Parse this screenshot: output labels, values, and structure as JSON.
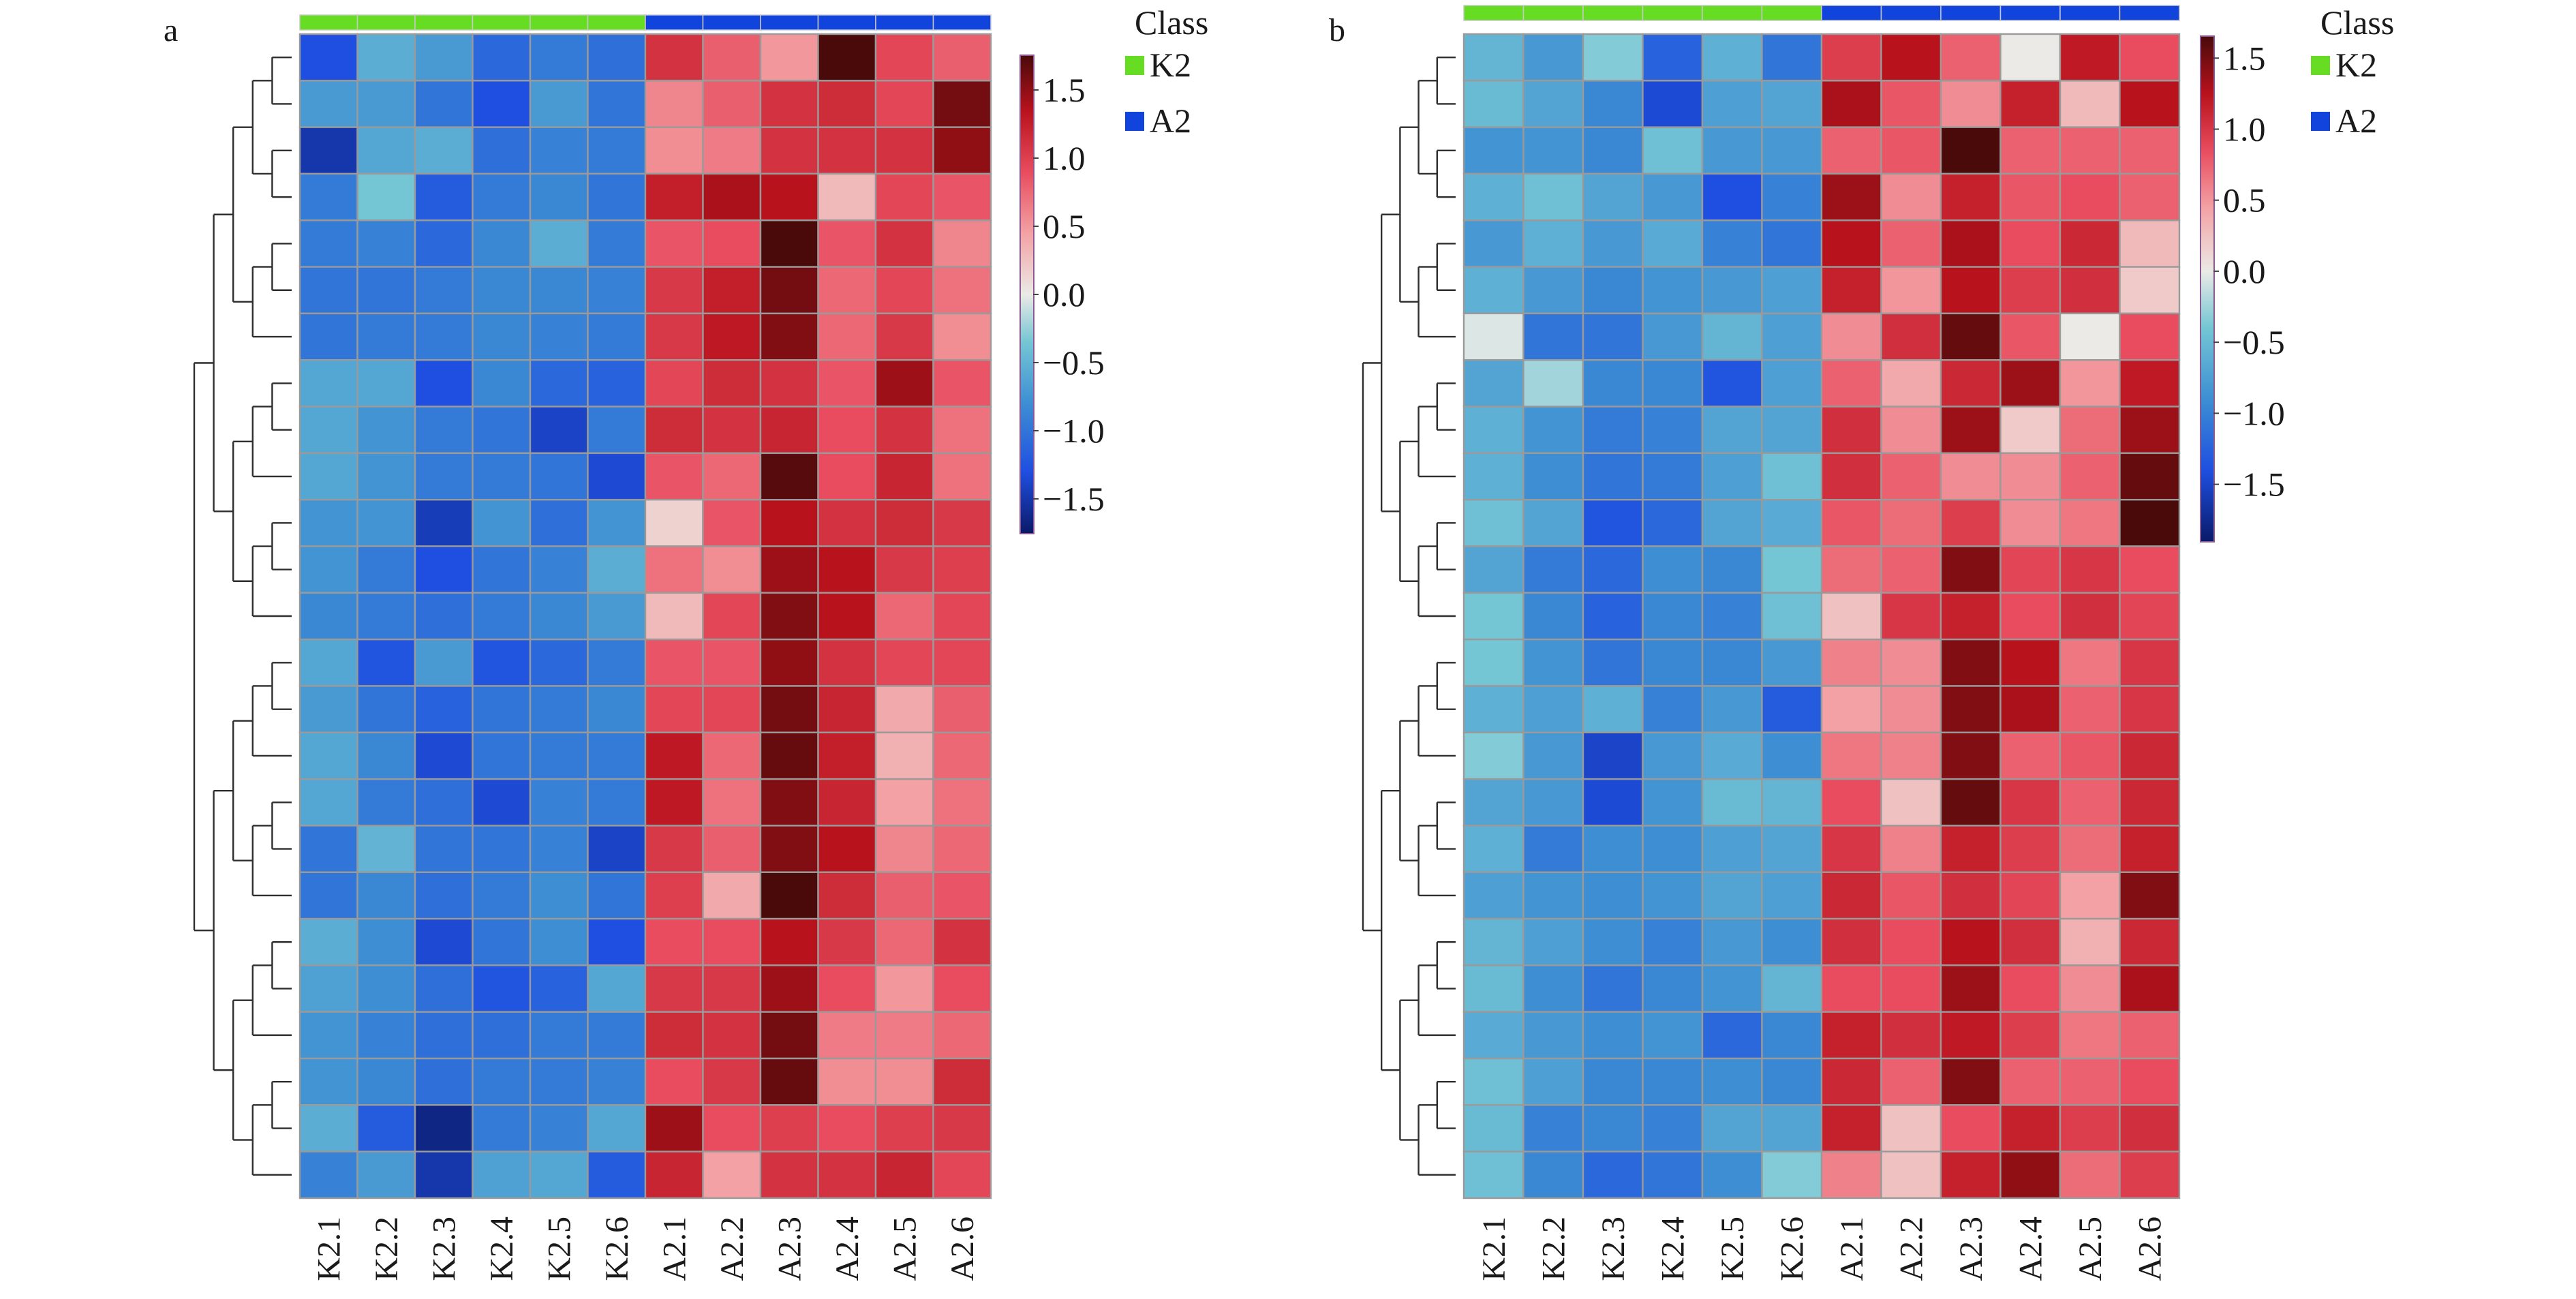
{
  "chart_data": [
    {
      "type": "heatmap",
      "panel_label": "a",
      "columns": [
        "K2.1",
        "K2.2",
        "K2.3",
        "K2.4",
        "K2.5",
        "K2.6",
        "A2.1",
        "A2.2",
        "A2.3",
        "A2.4",
        "A2.5",
        "A2.6"
      ],
      "column_classes": [
        "K2",
        "K2",
        "K2",
        "K2",
        "K2",
        "K2",
        "A2",
        "A2",
        "A2",
        "A2",
        "A2",
        "A2"
      ],
      "legend": {
        "title": "Class",
        "entries": [
          {
            "label": "K2",
            "color": "#66dd22"
          },
          {
            "label": "A2",
            "color": "#1144dd"
          }
        ]
      },
      "color_scale": {
        "min": -1.75,
        "max": 1.75,
        "ticks": [
          "1.5",
          "1.0",
          "0.5",
          "0.0",
          "−0.5",
          "−1.0",
          "−1.5"
        ],
        "tick_values": [
          1.5,
          1.0,
          0.5,
          0.0,
          -0.5,
          -1.0,
          -1.5
        ],
        "stops": [
          {
            "v": -1.75,
            "c": "#0a1a6a"
          },
          {
            "v": -1.3,
            "c": "#1f4fe0"
          },
          {
            "v": -0.8,
            "c": "#3d8ed3"
          },
          {
            "v": -0.35,
            "c": "#74c6d4"
          },
          {
            "v": 0.0,
            "c": "#ebeae6"
          },
          {
            "v": 0.45,
            "c": "#f3a1a4"
          },
          {
            "v": 0.9,
            "c": "#e84c5e"
          },
          {
            "v": 1.35,
            "c": "#b8121c"
          },
          {
            "v": 1.75,
            "c": "#4a0a0a"
          }
        ]
      },
      "values": [
        [
          -1.3,
          -0.55,
          -0.7,
          -1.1,
          -0.95,
          -1.05,
          1.1,
          0.8,
          0.5,
          1.75,
          0.95,
          0.8
        ],
        [
          -0.7,
          -0.7,
          -1.0,
          -1.3,
          -0.7,
          -1.0,
          0.6,
          0.8,
          1.1,
          1.15,
          0.95,
          1.6
        ],
        [
          -1.5,
          -0.6,
          -0.55,
          -1.05,
          -0.9,
          -0.95,
          0.55,
          0.65,
          1.1,
          1.1,
          1.1,
          1.5
        ],
        [
          -0.95,
          -0.35,
          -1.2,
          -0.95,
          -0.85,
          -1.0,
          1.25,
          1.4,
          1.35,
          0.3,
          0.95,
          0.85
        ],
        [
          -0.95,
          -0.9,
          -1.1,
          -0.85,
          -0.55,
          -0.95,
          0.85,
          0.9,
          1.75,
          0.85,
          1.1,
          0.6
        ],
        [
          -1.0,
          -1.0,
          -0.95,
          -0.85,
          -0.85,
          -0.9,
          1.05,
          1.25,
          1.6,
          0.75,
          0.95,
          0.7
        ],
        [
          -1.0,
          -0.95,
          -0.95,
          -0.85,
          -0.9,
          -0.95,
          1.05,
          1.3,
          1.55,
          0.75,
          1.05,
          0.55
        ],
        [
          -0.6,
          -0.6,
          -1.3,
          -0.85,
          -1.1,
          -1.15,
          0.95,
          1.15,
          1.1,
          0.85,
          1.45,
          0.85
        ],
        [
          -0.6,
          -0.75,
          -0.95,
          -1.0,
          -1.4,
          -0.95,
          1.15,
          1.1,
          1.2,
          0.9,
          1.1,
          0.7
        ],
        [
          -0.6,
          -0.75,
          -0.95,
          -0.95,
          -1.0,
          -1.35,
          0.85,
          0.75,
          1.7,
          0.9,
          1.2,
          0.7
        ],
        [
          -0.75,
          -0.75,
          -1.45,
          -0.75,
          -1.05,
          -0.75,
          0.15,
          0.85,
          1.35,
          1.1,
          1.15,
          1.05
        ],
        [
          -0.75,
          -0.95,
          -1.3,
          -1.0,
          -0.9,
          -0.55,
          0.7,
          0.55,
          1.45,
          1.35,
          1.05,
          1.0
        ],
        [
          -0.85,
          -0.95,
          -1.05,
          -0.95,
          -0.85,
          -0.7,
          0.3,
          0.95,
          1.55,
          1.35,
          0.75,
          0.95
        ],
        [
          -0.6,
          -1.25,
          -0.7,
          -1.25,
          -1.1,
          -0.95,
          0.85,
          0.85,
          1.5,
          1.1,
          0.95,
          0.95
        ],
        [
          -0.7,
          -1.0,
          -1.15,
          -1.0,
          -0.95,
          -0.85,
          0.95,
          0.95,
          1.6,
          1.2,
          0.4,
          0.8
        ],
        [
          -0.6,
          -0.85,
          -1.35,
          -1.0,
          -0.95,
          -0.95,
          1.3,
          0.75,
          1.65,
          1.25,
          0.35,
          0.75
        ],
        [
          -0.6,
          -0.95,
          -1.05,
          -1.35,
          -0.9,
          -0.95,
          1.3,
          0.7,
          1.55,
          1.2,
          0.45,
          0.7
        ],
        [
          -1.0,
          -0.5,
          -1.0,
          -1.0,
          -0.9,
          -1.4,
          1.05,
          0.8,
          1.55,
          1.35,
          0.6,
          0.75
        ],
        [
          -1.0,
          -0.85,
          -1.05,
          -0.95,
          -0.8,
          -1.0,
          1.0,
          0.4,
          1.75,
          1.15,
          0.8,
          0.85
        ],
        [
          -0.55,
          -0.8,
          -1.35,
          -1.0,
          -0.8,
          -1.3,
          0.9,
          0.9,
          1.35,
          1.05,
          0.75,
          1.1
        ],
        [
          -0.65,
          -0.8,
          -1.05,
          -1.25,
          -1.15,
          -0.6,
          1.05,
          1.05,
          1.45,
          0.9,
          0.5,
          0.9
        ],
        [
          -0.75,
          -0.9,
          -1.05,
          -1.05,
          -0.95,
          -0.95,
          1.15,
          1.1,
          1.6,
          0.65,
          0.65,
          0.75
        ],
        [
          -0.75,
          -0.85,
          -1.05,
          -0.95,
          -0.95,
          -0.9,
          0.9,
          1.05,
          1.65,
          0.55,
          0.55,
          1.15
        ],
        [
          -0.55,
          -1.2,
          -1.65,
          -0.95,
          -0.9,
          -0.6,
          1.45,
          0.9,
          1.0,
          0.9,
          1.0,
          1.05
        ],
        [
          -0.9,
          -0.7,
          -1.5,
          -0.65,
          -0.6,
          -1.2,
          1.2,
          0.45,
          1.1,
          1.1,
          1.2,
          0.95
        ]
      ]
    },
    {
      "type": "heatmap",
      "panel_label": "b",
      "columns": [
        "K2.1",
        "K2.2",
        "K2.3",
        "K2.4",
        "K2.5",
        "K2.6",
        "A2.1",
        "A2.2",
        "A2.3",
        "A2.4",
        "A2.5",
        "A2.6"
      ],
      "column_classes": [
        "K2",
        "K2",
        "K2",
        "K2",
        "K2",
        "K2",
        "A2",
        "A2",
        "A2",
        "A2",
        "A2",
        "A2"
      ],
      "legend": {
        "title": "Class",
        "entries": [
          {
            "label": "K2",
            "color": "#66dd22"
          },
          {
            "label": "A2",
            "color": "#1144dd"
          }
        ]
      },
      "color_scale": {
        "min": -1.9,
        "max": 1.65,
        "ticks": [
          "1.5",
          "1.0",
          "0.5",
          "0.0",
          "−0.5",
          "−1.0",
          "−1.5"
        ],
        "tick_values": [
          1.5,
          1.0,
          0.5,
          0.0,
          -0.5,
          -1.0,
          -1.5
        ],
        "stops": [
          {
            "v": -1.9,
            "c": "#0a1a6a"
          },
          {
            "v": -1.4,
            "c": "#1f4fe0"
          },
          {
            "v": -0.9,
            "c": "#3d8ed3"
          },
          {
            "v": -0.4,
            "c": "#74c6d4"
          },
          {
            "v": 0.0,
            "c": "#ebeae6"
          },
          {
            "v": 0.45,
            "c": "#f3a1a4"
          },
          {
            "v": 0.85,
            "c": "#e84c5e"
          },
          {
            "v": 1.25,
            "c": "#b8121c"
          },
          {
            "v": 1.65,
            "c": "#4a0a0a"
          }
        ]
      },
      "values": [
        [
          -0.55,
          -0.8,
          -0.35,
          -1.25,
          -0.6,
          -1.1,
          0.95,
          1.25,
          0.75,
          0.0,
          1.2,
          0.85
        ],
        [
          -0.5,
          -0.7,
          -0.95,
          -1.45,
          -0.75,
          -0.7,
          1.3,
          0.8,
          0.55,
          1.15,
          0.3,
          1.25
        ],
        [
          -0.85,
          -0.85,
          -0.95,
          -0.45,
          -0.8,
          -0.8,
          0.75,
          0.8,
          1.65,
          0.75,
          0.75,
          0.75
        ],
        [
          -0.6,
          -0.45,
          -0.7,
          -0.8,
          -1.4,
          -1.0,
          1.35,
          0.55,
          1.15,
          0.8,
          0.85,
          0.75
        ],
        [
          -0.8,
          -0.6,
          -0.8,
          -0.65,
          -1.0,
          -1.1,
          1.25,
          0.75,
          1.3,
          0.85,
          1.1,
          0.3
        ],
        [
          -0.6,
          -0.8,
          -0.95,
          -0.85,
          -0.8,
          -0.75,
          1.15,
          0.5,
          1.25,
          0.95,
          1.05,
          0.2
        ],
        [
          -0.05,
          -1.1,
          -1.1,
          -0.8,
          -0.55,
          -0.75,
          0.55,
          1.05,
          1.55,
          0.8,
          0.0,
          0.85
        ],
        [
          -0.7,
          -0.25,
          -0.95,
          -0.95,
          -1.35,
          -0.75,
          0.75,
          0.4,
          1.1,
          1.35,
          0.5,
          1.2
        ],
        [
          -0.6,
          -0.85,
          -1.05,
          -1.0,
          -0.7,
          -0.7,
          1.05,
          0.55,
          1.35,
          0.2,
          0.7,
          1.35
        ],
        [
          -0.6,
          -0.9,
          -1.1,
          -1.05,
          -0.75,
          -0.45,
          1.05,
          0.75,
          0.55,
          0.55,
          0.75,
          1.55
        ],
        [
          -0.45,
          -0.7,
          -1.35,
          -1.2,
          -0.7,
          -0.65,
          0.8,
          0.7,
          0.95,
          0.55,
          0.65,
          1.65
        ],
        [
          -0.7,
          -1.05,
          -1.2,
          -0.9,
          -0.95,
          -0.4,
          0.7,
          0.75,
          1.45,
          0.9,
          1.0,
          0.85
        ],
        [
          -0.4,
          -0.95,
          -1.25,
          -0.95,
          -1.0,
          -0.45,
          0.25,
          1.0,
          1.15,
          0.85,
          1.05,
          0.9
        ],
        [
          -0.4,
          -0.85,
          -1.1,
          -0.95,
          -0.95,
          -0.8,
          0.6,
          0.55,
          1.45,
          1.25,
          0.65,
          1.0
        ],
        [
          -0.6,
          -0.75,
          -0.6,
          -1.0,
          -0.8,
          -1.3,
          0.45,
          0.55,
          1.45,
          1.3,
          0.75,
          1.0
        ],
        [
          -0.35,
          -0.8,
          -1.5,
          -0.8,
          -0.65,
          -0.9,
          0.65,
          0.6,
          1.45,
          0.75,
          0.8,
          1.1
        ],
        [
          -0.7,
          -0.8,
          -1.45,
          -0.85,
          -0.5,
          -0.55,
          0.85,
          0.25,
          1.55,
          1.0,
          0.75,
          1.1
        ],
        [
          -0.6,
          -1.05,
          -0.9,
          -0.9,
          -0.75,
          -0.7,
          1.0,
          0.6,
          1.15,
          0.95,
          0.7,
          1.15
        ],
        [
          -0.75,
          -0.85,
          -0.9,
          -0.85,
          -0.7,
          -0.75,
          1.1,
          0.8,
          1.05,
          0.9,
          0.45,
          1.45
        ],
        [
          -0.55,
          -0.75,
          -0.9,
          -1.0,
          -0.8,
          -0.9,
          1.05,
          0.85,
          1.25,
          1.05,
          0.35,
          1.1
        ],
        [
          -0.5,
          -0.9,
          -1.1,
          -0.95,
          -0.85,
          -0.55,
          0.85,
          0.85,
          1.35,
          0.85,
          0.55,
          1.3
        ],
        [
          -0.65,
          -0.8,
          -0.9,
          -0.85,
          -1.2,
          -0.95,
          1.15,
          1.05,
          1.2,
          0.95,
          0.65,
          0.75
        ],
        [
          -0.45,
          -0.75,
          -0.95,
          -0.95,
          -0.9,
          -0.95,
          1.1,
          0.75,
          1.45,
          0.75,
          0.75,
          0.85
        ],
        [
          -0.5,
          -1.0,
          -0.95,
          -1.0,
          -0.7,
          -0.7,
          1.15,
          0.25,
          0.85,
          1.15,
          0.95,
          1.05
        ],
        [
          -0.45,
          -0.95,
          -1.2,
          -1.1,
          -0.9,
          -0.35,
          0.6,
          0.25,
          1.15,
          1.4,
          0.7,
          0.95
        ]
      ]
    }
  ]
}
